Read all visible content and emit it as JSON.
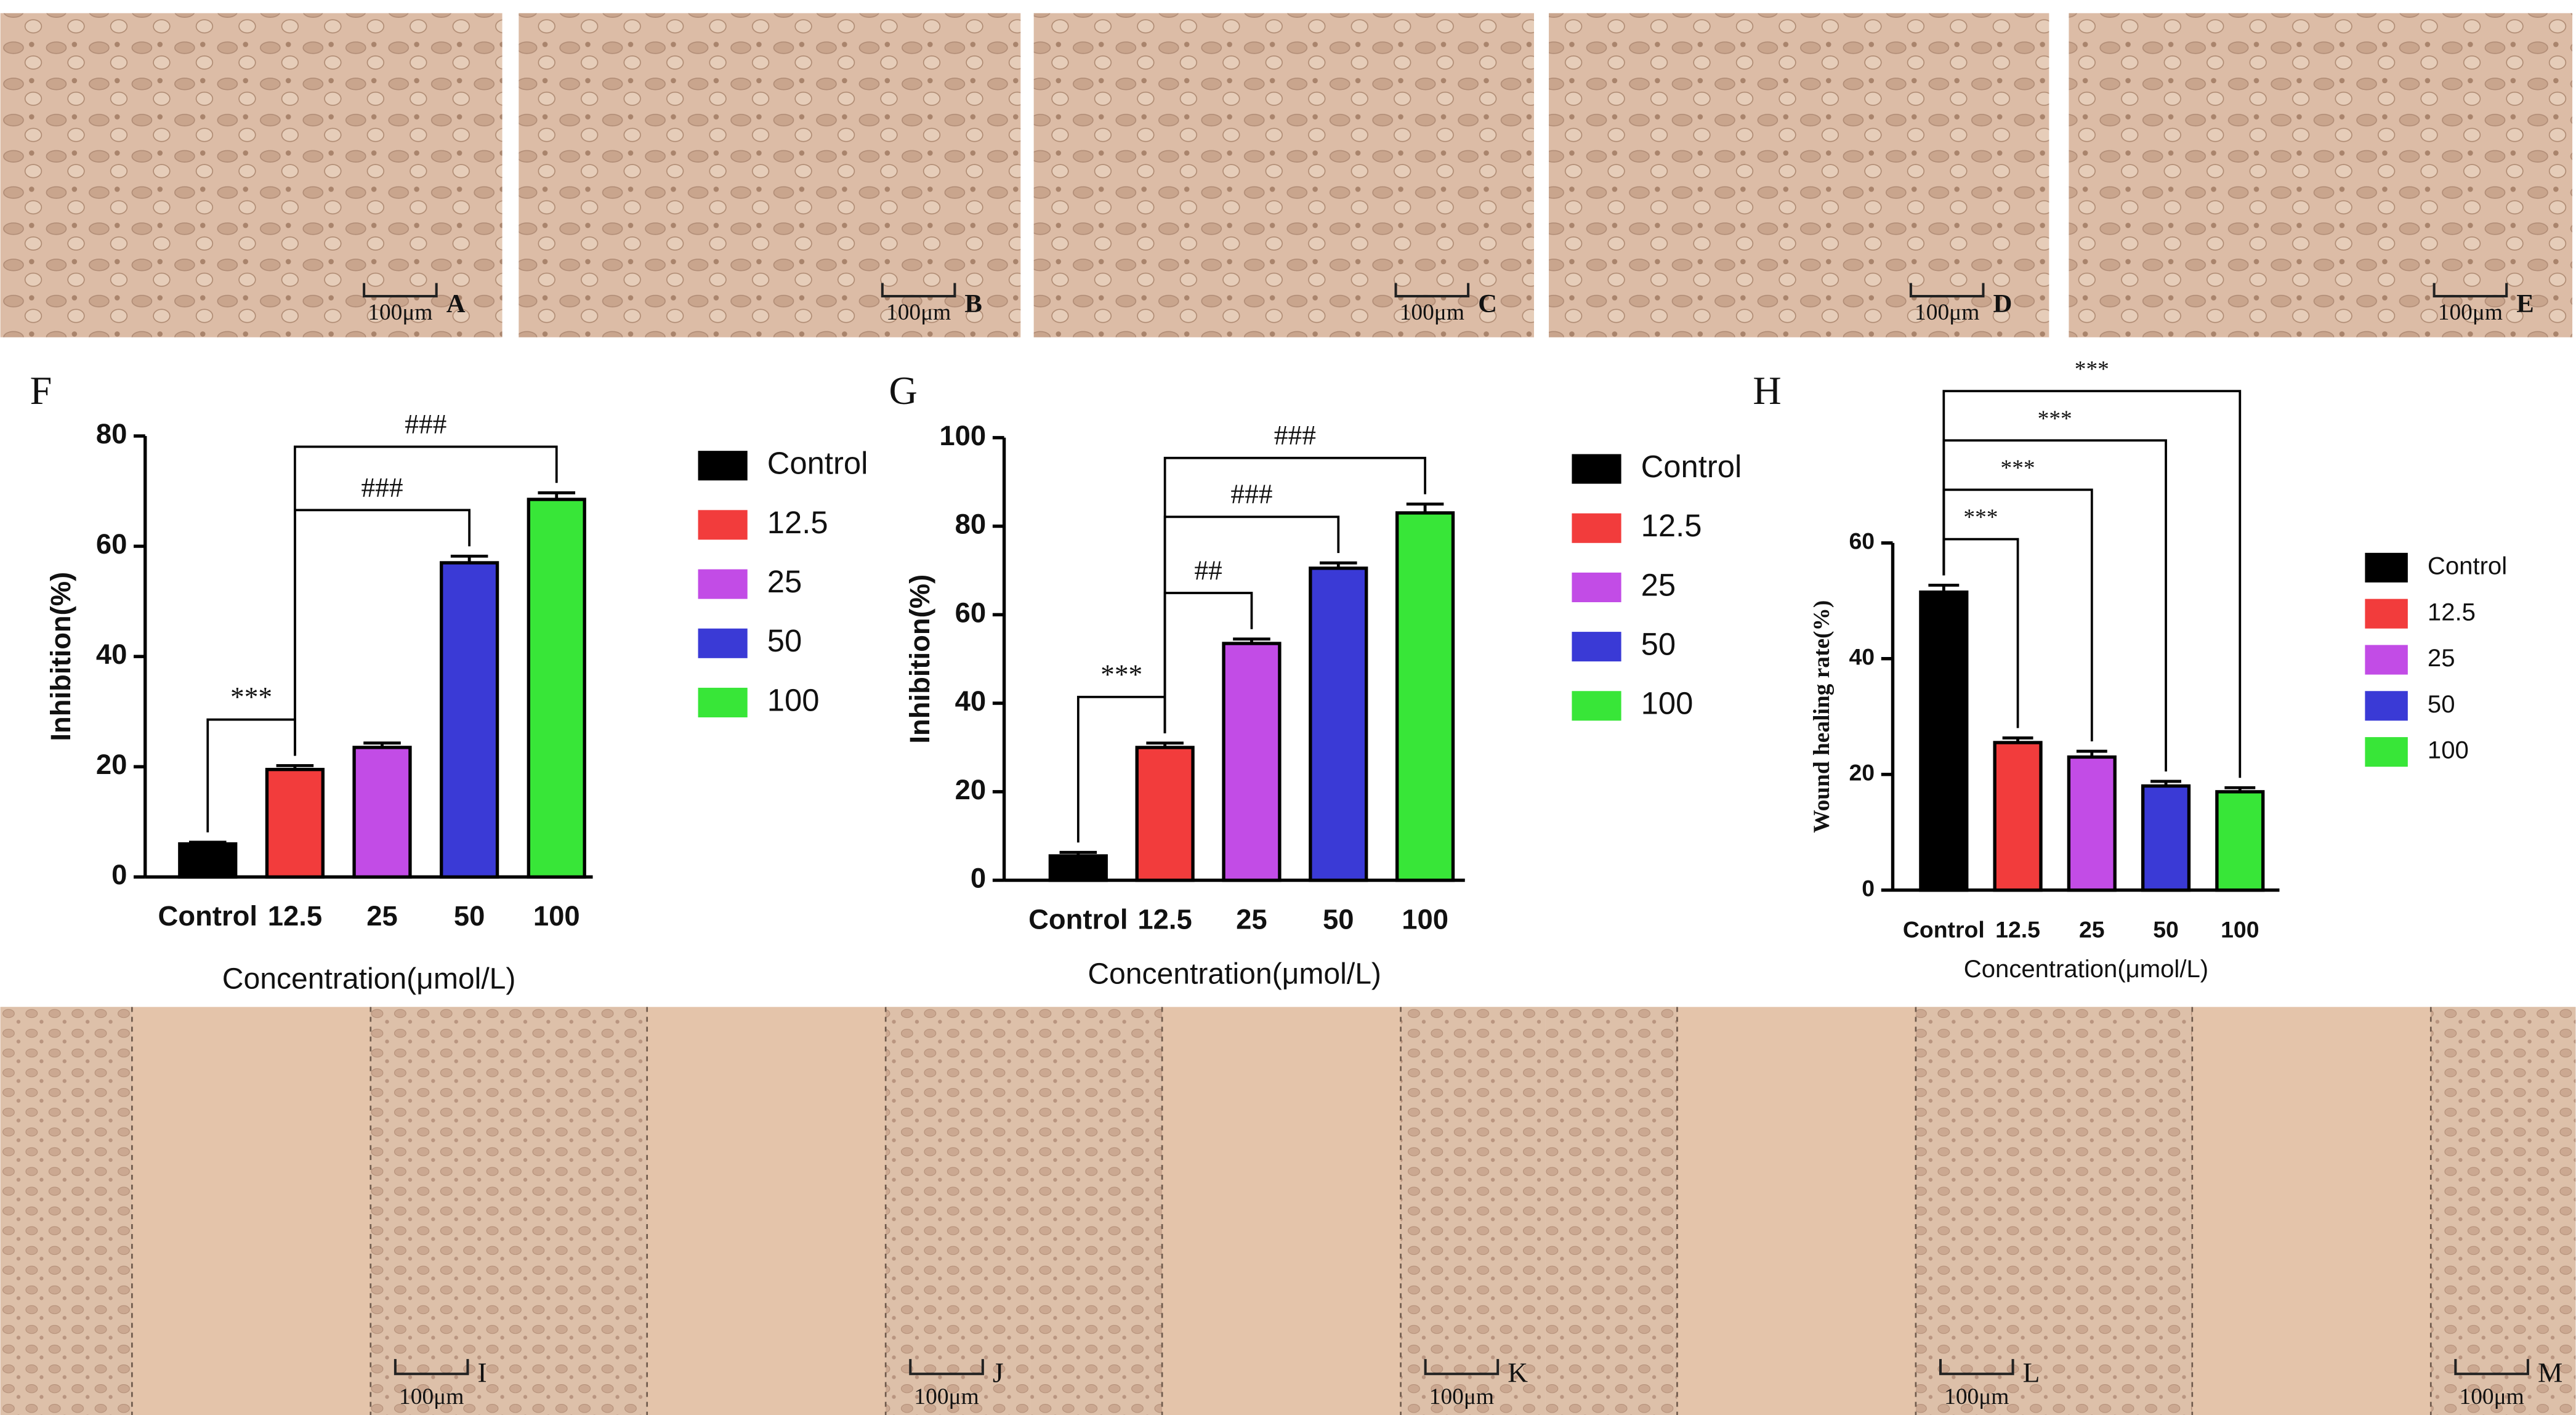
{
  "micrographs_top": [
    {
      "label": "A",
      "scale_bar": "100μm"
    },
    {
      "label": "B",
      "scale_bar": "100μm"
    },
    {
      "label": "C",
      "scale_bar": "100μm"
    },
    {
      "label": "D",
      "scale_bar": "100μm"
    },
    {
      "label": "E",
      "scale_bar": "100μm"
    }
  ],
  "micrographs_bottom": [
    {
      "label": "I",
      "scale_bar": "100μm"
    },
    {
      "label": "J",
      "scale_bar": "100μm"
    },
    {
      "label": "K",
      "scale_bar": "100μm"
    },
    {
      "label": "L",
      "scale_bar": "100μm"
    },
    {
      "label": "M",
      "scale_bar": "100μm"
    }
  ],
  "chart_data": [
    {
      "type": "bar",
      "label": "F",
      "y_label": "Inhibition(%)",
      "x_label": "Concentration(μmol/L)",
      "categories": [
        "Control",
        "12.5",
        "25",
        "50",
        "100"
      ],
      "values": [
        6,
        19.5,
        23.5,
        57,
        68.5
      ],
      "errors": [
        0.3,
        0.7,
        0.8,
        1.2,
        1.2
      ],
      "colors": [
        "#000000",
        "#f23c3c",
        "#c24ce6",
        "#3a3ad6",
        "#38e638"
      ],
      "ylim": [
        0,
        80
      ],
      "yticks": [
        0,
        20,
        40,
        60,
        80
      ],
      "legend": "right",
      "annotations": [
        {
          "text": "***",
          "from": "Control",
          "to": "12.5"
        },
        {
          "text": "###",
          "from": "12.5",
          "to": "50"
        },
        {
          "text": "###",
          "from": "12.5",
          "to": "100"
        }
      ]
    },
    {
      "type": "bar",
      "label": "G",
      "y_label": "Inhibition(%)",
      "x_label": "Concentration(μmol/L)",
      "categories": [
        "Control",
        "12.5",
        "25",
        "50",
        "100"
      ],
      "values": [
        5.5,
        30,
        53.5,
        70.5,
        83
      ],
      "errors": [
        0.8,
        1,
        1,
        1.2,
        2
      ],
      "colors": [
        "#000000",
        "#f23c3c",
        "#c24ce6",
        "#3a3ad6",
        "#38e638"
      ],
      "ylim": [
        0,
        100
      ],
      "yticks": [
        0,
        20,
        40,
        60,
        80,
        100
      ],
      "legend": "right",
      "annotations": [
        {
          "text": "***",
          "from": "Control",
          "to": "12.5"
        },
        {
          "text": "##",
          "from": "12.5",
          "to": "25"
        },
        {
          "text": "###",
          "from": "12.5",
          "to": "50"
        },
        {
          "text": "###",
          "from": "12.5",
          "to": "100"
        }
      ]
    },
    {
      "type": "bar",
      "label": "H",
      "y_label": "Wound healing rate(%)",
      "x_label": "Concentration(μmol/L)",
      "categories": [
        "Control",
        "12.5",
        "25",
        "50",
        "100"
      ],
      "values": [
        51.5,
        25.5,
        23,
        18,
        17
      ],
      "errors": [
        1.2,
        0.8,
        1,
        0.8,
        0.7
      ],
      "colors": [
        "#000000",
        "#f23c3c",
        "#c24ce6",
        "#3a3ad6",
        "#38e638"
      ],
      "ylim": [
        0,
        60
      ],
      "yticks": [
        0,
        20,
        40,
        60
      ],
      "legend": "right",
      "annotations": [
        {
          "text": "***",
          "from": "Control",
          "to": "12.5"
        },
        {
          "text": "***",
          "from": "Control",
          "to": "25"
        },
        {
          "text": "***",
          "from": "Control",
          "to": "50"
        },
        {
          "text": "***",
          "from": "Control",
          "to": "100"
        }
      ]
    }
  ]
}
